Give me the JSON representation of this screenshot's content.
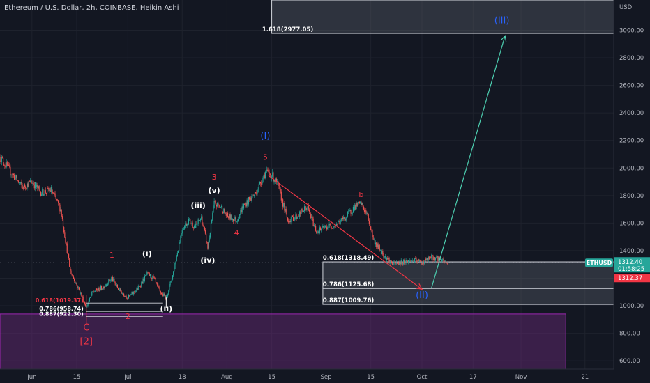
{
  "header": {
    "title": "Ethereum / U.S. Dollar, 2h, COINBASE, Heikin Ashi"
  },
  "chart_data": {
    "type": "candlestick",
    "symbol": "ETHUSD",
    "currency_label": "USD",
    "x_ticks": [
      {
        "date": "2022-06-01",
        "label": "Jun"
      },
      {
        "date": "2022-06-15",
        "label": "15"
      },
      {
        "date": "2022-07-01",
        "label": "Jul"
      },
      {
        "date": "2022-07-18",
        "label": "18"
      },
      {
        "date": "2022-08-01",
        "label": "Aug"
      },
      {
        "date": "2022-08-15",
        "label": "15"
      },
      {
        "date": "2022-09-01",
        "label": "Sep"
      },
      {
        "date": "2022-09-15",
        "label": "15"
      },
      {
        "date": "2022-10-01",
        "label": "Oct"
      },
      {
        "date": "2022-10-17",
        "label": "17"
      },
      {
        "date": "2022-11-01",
        "label": "Nov"
      },
      {
        "date": "2022-11-21",
        "label": "21"
      }
    ],
    "y_ticks": [
      "600.00",
      "800.00",
      "1000.00",
      "1200.00",
      "1400.00",
      "1600.00",
      "1800.00",
      "2000.00",
      "2200.00",
      "2400.00",
      "2600.00",
      "2800.00",
      "3000.00"
    ],
    "ylim": [
      540,
      3220
    ],
    "xlim": [
      "2022-05-22",
      "2022-11-30"
    ],
    "price_path": [
      [
        "2022-05-22",
        2080
      ],
      [
        "2022-05-26",
        1950
      ],
      [
        "2022-05-29",
        1860
      ],
      [
        "2022-06-01",
        1900
      ],
      [
        "2022-06-04",
        1820
      ],
      [
        "2022-06-07",
        1840
      ],
      [
        "2022-06-10",
        1700
      ],
      [
        "2022-06-13",
        1250
      ],
      [
        "2022-06-16",
        1100
      ],
      [
        "2022-06-18",
        990
      ],
      [
        "2022-06-20",
        1100
      ],
      [
        "2022-06-23",
        1130
      ],
      [
        "2022-06-26",
        1200
      ],
      [
        "2022-06-28",
        1120
      ],
      [
        "2022-07-01",
        1060
      ],
      [
        "2022-07-04",
        1120
      ],
      [
        "2022-07-07",
        1230
      ],
      [
        "2022-07-09",
        1200
      ],
      [
        "2022-07-11",
        1100
      ],
      [
        "2022-07-13",
        1060
      ],
      [
        "2022-07-15",
        1220
      ],
      [
        "2022-07-18",
        1560
      ],
      [
        "2022-07-20",
        1620
      ],
      [
        "2022-07-22",
        1570
      ],
      [
        "2022-07-24",
        1640
      ],
      [
        "2022-07-26",
        1420
      ],
      [
        "2022-07-28",
        1740
      ],
      [
        "2022-07-30",
        1720
      ],
      [
        "2022-08-01",
        1650
      ],
      [
        "2022-08-04",
        1620
      ],
      [
        "2022-08-06",
        1720
      ],
      [
        "2022-08-10",
        1820
      ],
      [
        "2022-08-13",
        1970
      ],
      [
        "2022-08-15",
        1950
      ],
      [
        "2022-08-17",
        1870
      ],
      [
        "2022-08-20",
        1620
      ],
      [
        "2022-08-23",
        1650
      ],
      [
        "2022-08-26",
        1720
      ],
      [
        "2022-08-29",
        1540
      ],
      [
        "2022-09-01",
        1570
      ],
      [
        "2022-09-04",
        1590
      ],
      [
        "2022-09-07",
        1640
      ],
      [
        "2022-09-10",
        1720
      ],
      [
        "2022-09-12",
        1740
      ],
      [
        "2022-09-14",
        1650
      ],
      [
        "2022-09-16",
        1470
      ],
      [
        "2022-09-19",
        1370
      ],
      [
        "2022-09-22",
        1300
      ],
      [
        "2022-09-25",
        1320
      ],
      [
        "2022-09-28",
        1330
      ],
      [
        "2022-10-01",
        1315
      ],
      [
        "2022-10-04",
        1350
      ],
      [
        "2022-10-07",
        1340
      ],
      [
        "2022-10-09",
        1310
      ]
    ],
    "current_price": "1312.40",
    "countdown": "01:58:25",
    "second_price": "1312.37",
    "zones": [
      {
        "from": "2022-08-15",
        "to": "2022-11-30",
        "low": 2977.05,
        "high": 3240,
        "color": "#5d606b"
      },
      {
        "from": "2022-08-31",
        "to": "2022-11-30",
        "low": 1125.68,
        "high": 1318.49,
        "color": "#5d606b"
      },
      {
        "from": "2022-08-31",
        "to": "2022-11-30",
        "low": 1009.76,
        "high": 1125.68,
        "color": "#5d606b"
      },
      {
        "from": "2022-05-22",
        "to": "2022-11-15",
        "low": 540,
        "high": 940,
        "color": "#6b2b7a"
      }
    ],
    "fib_labels": [
      {
        "text": "1.618(2977.05)",
        "date": "2022-08-12",
        "y": 2977.05,
        "color": "#ffffff"
      },
      {
        "text": "0.618(1318.49)",
        "date": "2022-08-31",
        "y": 1318.49,
        "color": "#ffffff"
      },
      {
        "text": "0.786(1125.68)",
        "date": "2022-08-31",
        "y": 1125.68,
        "color": "#ffffff"
      },
      {
        "text": "0.887(1009.76)",
        "date": "2022-08-31",
        "y": 1009.76,
        "color": "#ffffff"
      },
      {
        "text": "0.618(1019.37)",
        "date": "2022-06-18",
        "y": 1019.37,
        "color": "#f23645"
      },
      {
        "text": "0.786(958.74)",
        "date": "2022-06-18",
        "y": 958.74,
        "color": "#ffffff"
      },
      {
        "text": "0.887(922.30)",
        "date": "2022-06-18",
        "y": 922.3,
        "color": "#ffffff"
      }
    ],
    "wave_labels": [
      {
        "text": "(I)",
        "date": "2022-08-13",
        "y": 2215,
        "color": "#2962ff"
      },
      {
        "text": "5",
        "date": "2022-08-13",
        "y": 2060,
        "color": "#f23645"
      },
      {
        "text": "3",
        "date": "2022-07-28",
        "y": 1915,
        "color": "#f23645"
      },
      {
        "text": "(v)",
        "date": "2022-07-28",
        "y": 1820,
        "color": "#ffffff"
      },
      {
        "text": "(iii)",
        "date": "2022-07-23",
        "y": 1710,
        "color": "#ffffff"
      },
      {
        "text": "4",
        "date": "2022-08-04",
        "y": 1510,
        "color": "#f23645"
      },
      {
        "text": "(iv)",
        "date": "2022-07-26",
        "y": 1310,
        "color": "#ffffff"
      },
      {
        "text": "1",
        "date": "2022-06-26",
        "y": 1350,
        "color": "#f23645"
      },
      {
        "text": "(i)",
        "date": "2022-07-07",
        "y": 1360,
        "color": "#ffffff"
      },
      {
        "text": "(ii)",
        "date": "2022-07-13",
        "y": 960,
        "color": "#ffffff"
      },
      {
        "text": "2",
        "date": "2022-07-01",
        "y": 905,
        "color": "#f23645"
      },
      {
        "text": "C",
        "date": "2022-06-18",
        "y": 820,
        "color": "#f23645"
      },
      {
        "text": "[2]",
        "date": "2022-06-18",
        "y": 720,
        "color": "#f23645"
      },
      {
        "text": "b",
        "date": "2022-09-12",
        "y": 1790,
        "color": "#f23645"
      },
      {
        "text": "(II)",
        "date": "2022-10-01",
        "y": 1055,
        "color": "#2962ff"
      },
      {
        "text": "(III)",
        "date": "2022-10-26",
        "y": 3050,
        "color": "#2962ff"
      }
    ],
    "arrows": [
      {
        "from": [
          "2022-08-14",
          1945
        ],
        "to": [
          "2022-10-01",
          1120
        ],
        "color": "#f23645"
      },
      {
        "from": [
          "2022-10-04",
          1130
        ],
        "to": [
          "2022-10-27",
          2960
        ],
        "color": "#4dd0b1"
      }
    ],
    "markers": [
      {
        "date": "2022-06-18",
        "low": 870,
        "high": 1080,
        "color": "#f23645"
      },
      {
        "date": "2022-07-13",
        "low": 985,
        "high": 1060,
        "color": "#ffffff"
      }
    ]
  }
}
